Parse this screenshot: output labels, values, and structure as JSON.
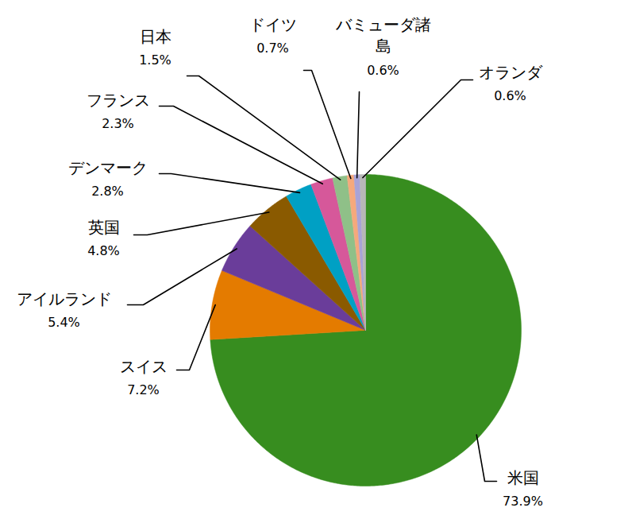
{
  "chart_data": {
    "type": "pie",
    "categories": [
      "米国",
      "スイス",
      "アイルランド",
      "英国",
      "デンマーク",
      "フランス",
      "日本",
      "ドイツ",
      "バミューダ諸島",
      "オランダ"
    ],
    "values": [
      73.9,
      7.2,
      5.4,
      4.8,
      2.8,
      2.3,
      1.5,
      0.7,
      0.6,
      0.6
    ],
    "value_labels": [
      "73.9%",
      "7.2%",
      "5.4%",
      "4.8%",
      "2.8%",
      "2.3%",
      "1.5%",
      "0.7%",
      "0.6%",
      "0.6%"
    ],
    "colors": [
      "#378d1f",
      "#e47b00",
      "#6a3d9a",
      "#8a5a00",
      "#00a0c4",
      "#d6589a",
      "#8fc088",
      "#f5a97c",
      "#a8a3d6",
      "#b7b7b7"
    ],
    "data_labels": true
  }
}
